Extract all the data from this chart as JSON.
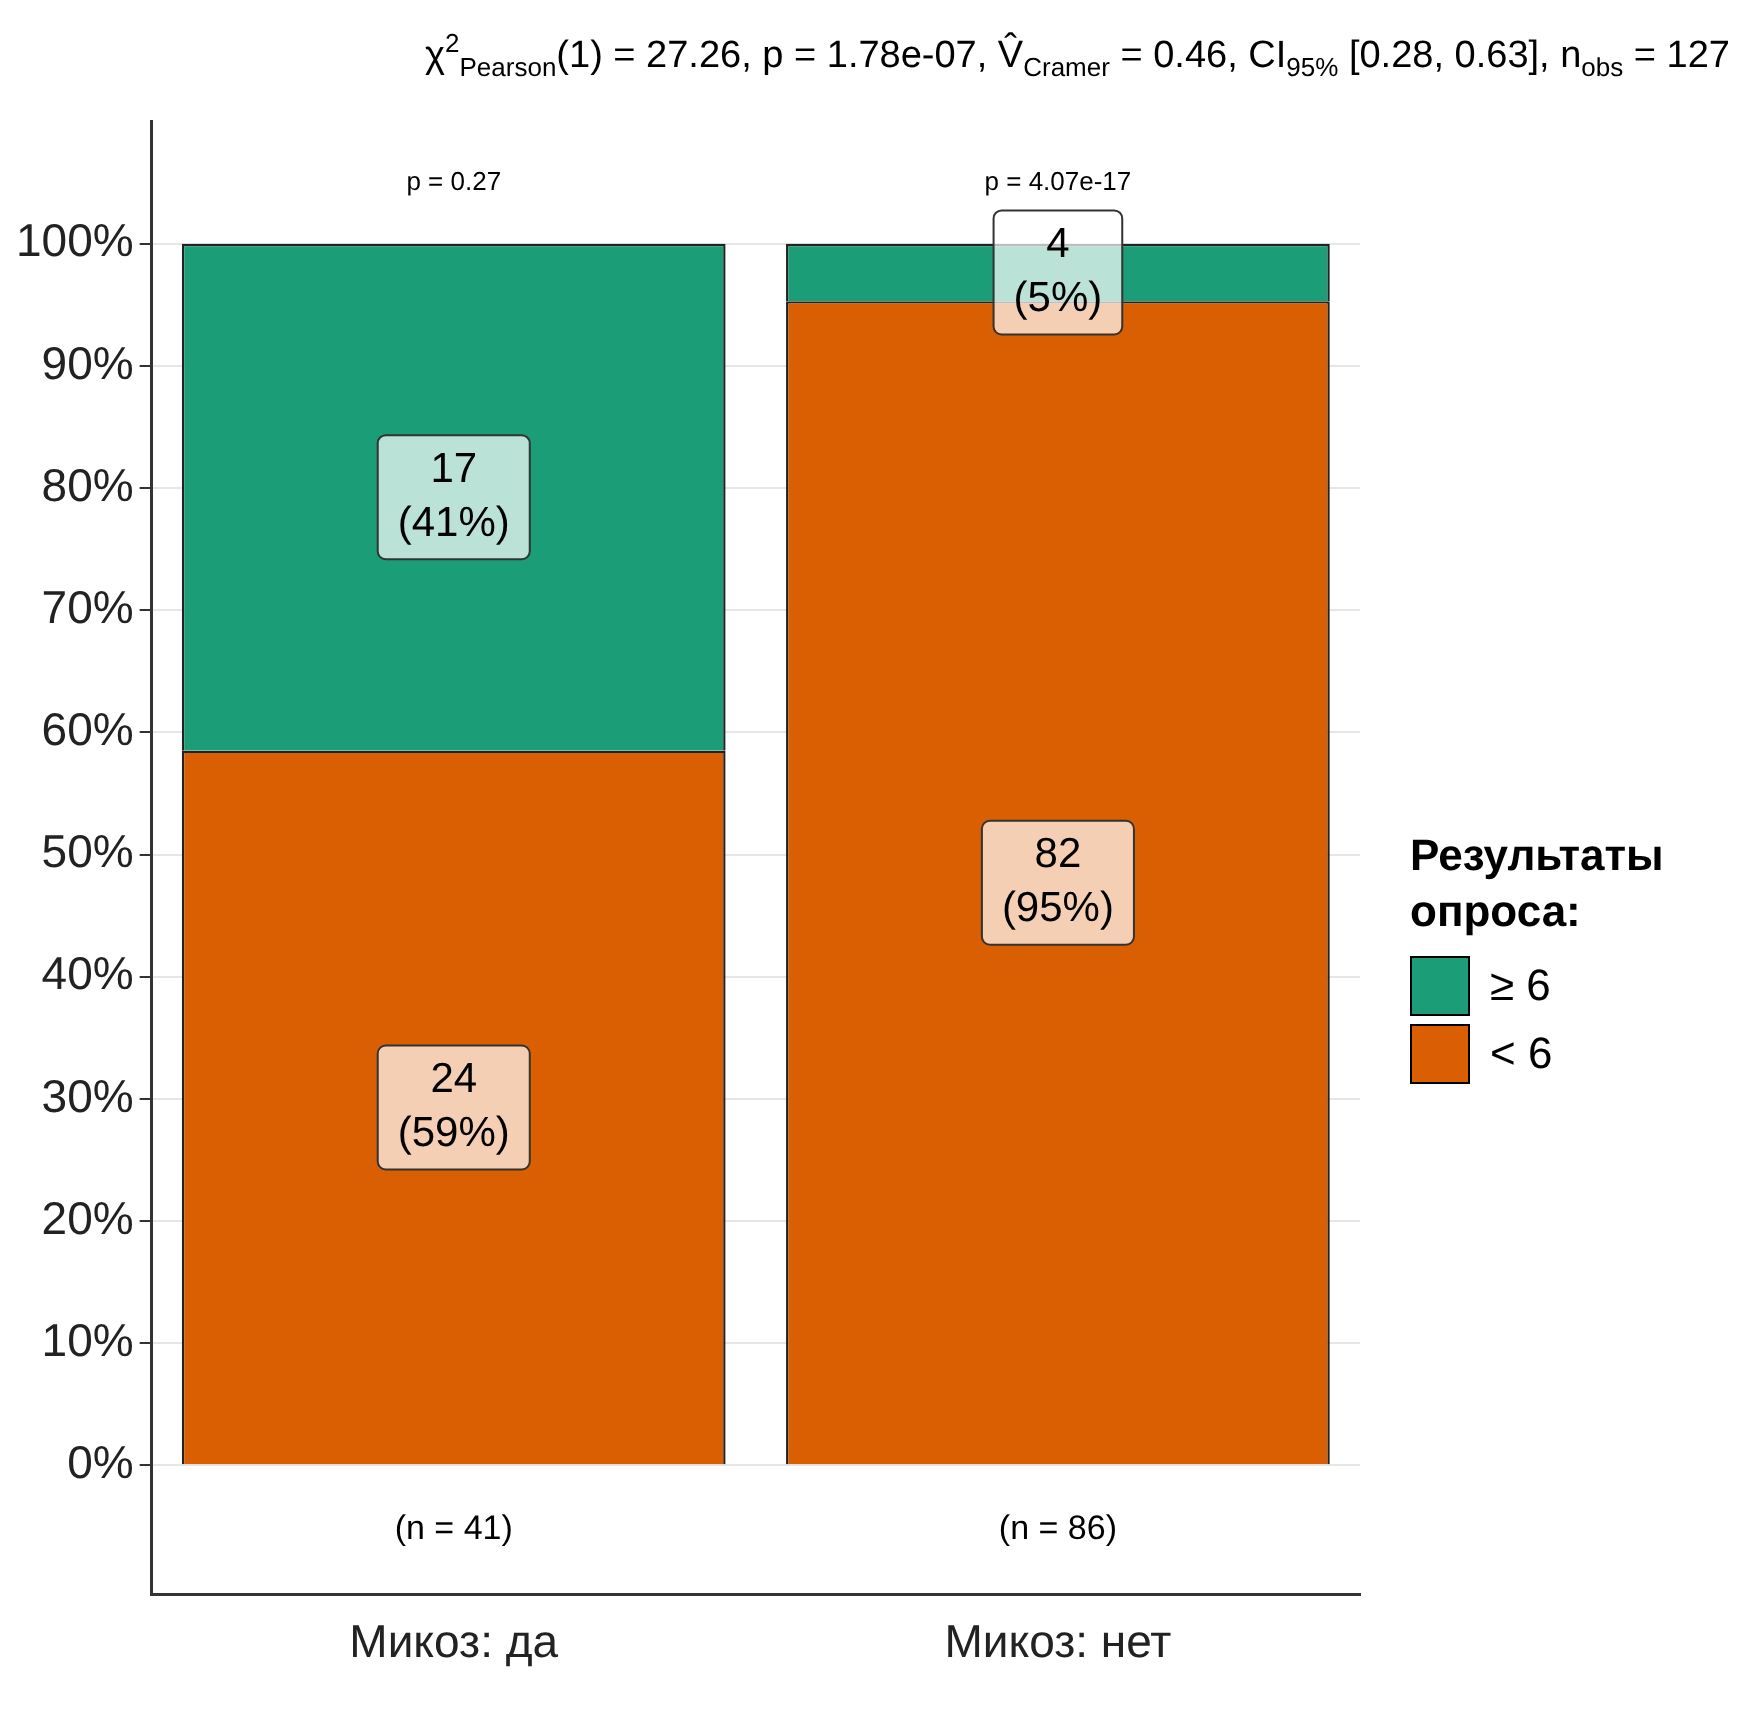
{
  "chart_data": {
    "type": "bar",
    "stacked": true,
    "title": "χ$^{2}$$_{Pearson}$(1) = 27.26, p = 1.78e-07, V̂$_{Cramer}$ = 0.46, CI$_{95%}$ [0.28, 0.63], n$_{obs}$ = 127",
    "categories": [
      "Микоз: да",
      "Микоз: нет"
    ],
    "series": [
      {
        "name": "< 6",
        "color": "#d95f02",
        "values": [
          58.5,
          95.3
        ],
        "value_labels": [
          "24\n(59%)",
          "82\n(95%)"
        ]
      },
      {
        "name": "≥ 6",
        "color": "#1b9e77",
        "values": [
          41.5,
          4.7
        ],
        "value_labels": [
          "17\n(41%)",
          "4\n(5%)"
        ]
      }
    ],
    "ylim": [
      -10.6,
      110
    ],
    "yticks": [
      {
        "value": 0,
        "label": "0%"
      },
      {
        "value": 10,
        "label": "10%"
      },
      {
        "value": 20,
        "label": "20%"
      },
      {
        "value": 30,
        "label": "30%"
      },
      {
        "value": 40,
        "label": "40%"
      },
      {
        "value": 50,
        "label": "50%"
      },
      {
        "value": 60,
        "label": "60%"
      },
      {
        "value": 70,
        "label": "70%"
      },
      {
        "value": 80,
        "label": "80%"
      },
      {
        "value": 90,
        "label": "90%"
      },
      {
        "value": 100,
        "label": "100%"
      }
    ],
    "grid": "y",
    "legend": "right",
    "legend_title": "Результаты опроса:",
    "annotations": [
      "p = 0.27",
      "p = 4.07e-17",
      "(n = 41)",
      "(n = 86)"
    ]
  }
}
